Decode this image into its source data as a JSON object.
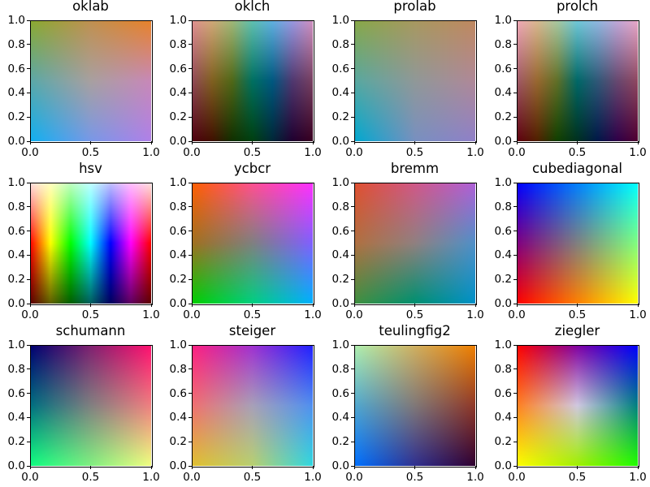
{
  "chart_data": [
    {
      "type": "heatmap",
      "title": "oklab",
      "xlim": [
        0,
        1
      ],
      "ylim": [
        0,
        1
      ],
      "xticks": [
        "0.0",
        "0.5",
        "1.0"
      ],
      "yticks": [
        "0.0",
        "0.2",
        "0.4",
        "0.6",
        "0.8",
        "1.0"
      ],
      "color_grid": [
        [
          "#8aaa30",
          "#c09050",
          "#e8822a"
        ],
        [
          "#5aa8a8",
          "#a8a0a0",
          "#c888b8"
        ],
        [
          "#10b0f0",
          "#7898e8",
          "#b080e8"
        ]
      ]
    },
    {
      "type": "heatmap",
      "title": "oklch",
      "xlim": [
        0,
        1
      ],
      "ylim": [
        0,
        1
      ],
      "xticks": [
        "0.0",
        "0.5",
        "1.0"
      ],
      "yticks": [
        "0.0",
        "0.2",
        "0.4",
        "0.6",
        "0.8",
        "1.0"
      ],
      "color_grid": [
        [
          "#e09090",
          "#d0a878",
          "#a0b878",
          "#60c0b0",
          "#60b0e0",
          "#9898e0",
          "#d090c0"
        ],
        [
          "#904858",
          "#806020",
          "#506818",
          "#007060",
          "#005880",
          "#503870",
          "#784060"
        ],
        [
          "#500010",
          "#401000",
          "#103000",
          "#004010",
          "#002838",
          "#200030",
          "#380020"
        ]
      ]
    },
    {
      "type": "heatmap",
      "title": "prolab",
      "xlim": [
        0,
        1
      ],
      "ylim": [
        0,
        1
      ],
      "xticks": [
        "0.0",
        "0.5",
        "1.0"
      ],
      "yticks": [
        "0.0",
        "0.2",
        "0.4",
        "0.6",
        "0.8",
        "1.0"
      ],
      "color_grid": [
        [
          "#88a848",
          "#a89860",
          "#c08860"
        ],
        [
          "#58a8a0",
          "#909898",
          "#b08898"
        ],
        [
          "#00a8d0",
          "#7890c0",
          "#9080c8"
        ]
      ]
    },
    {
      "type": "heatmap",
      "title": "prolch",
      "xlim": [
        0,
        1
      ],
      "ylim": [
        0,
        1
      ],
      "xticks": [
        "0.0",
        "0.5",
        "1.0"
      ],
      "yticks": [
        "0.0",
        "0.2",
        "0.4",
        "0.6",
        "0.8",
        "1.0"
      ],
      "color_grid": [
        [
          "#f0a8b8",
          "#d8b890",
          "#a8c8a0",
          "#70c8d8",
          "#90b8e0",
          "#c0a8d8",
          "#e8a8c8"
        ],
        [
          "#a05868",
          "#986830",
          "#607028",
          "#006868",
          "#305878",
          "#684870",
          "#904860"
        ],
        [
          "#600010",
          "#502000",
          "#104000",
          "#003020",
          "#001848",
          "#300048",
          "#500030"
        ]
      ]
    },
    {
      "type": "heatmap",
      "title": "hsv",
      "xlim": [
        0,
        1
      ],
      "ylim": [
        0,
        1
      ],
      "xticks": [
        "0.0",
        "0.5",
        "1.0"
      ],
      "yticks": [
        "0.0",
        "0.2",
        "0.4",
        "0.6",
        "0.8",
        "1.0"
      ],
      "color_grid": [
        [
          "#ffe0e0",
          "#ffffc0",
          "#c0ffc0",
          "#c0ffff",
          "#c0c0ff",
          "#ffc0ff",
          "#ffe0e0"
        ],
        [
          "#ff0000",
          "#ffff00",
          "#00ff00",
          "#00ffff",
          "#0000ff",
          "#ff00ff",
          "#ff0000"
        ],
        [
          "#600000",
          "#606000",
          "#006000",
          "#006060",
          "#000060",
          "#600060",
          "#600000"
        ]
      ]
    },
    {
      "type": "heatmap",
      "title": "ycbcr",
      "xlim": [
        0,
        1
      ],
      "ylim": [
        0,
        1
      ],
      "xticks": [
        "0.0",
        "0.5",
        "1.0"
      ],
      "yticks": [
        "0.0",
        "0.2",
        "0.4",
        "0.6",
        "0.8",
        "1.0"
      ],
      "color_grid": [
        [
          "#ff6000",
          "#ff5090",
          "#ff30ff"
        ],
        [
          "#a07020",
          "#808080",
          "#8060ff"
        ],
        [
          "#00d000",
          "#00d080",
          "#00b0ff"
        ]
      ]
    },
    {
      "type": "heatmap",
      "title": "bremm",
      "xlim": [
        0,
        1
      ],
      "ylim": [
        0,
        1
      ],
      "xticks": [
        "0.0",
        "0.5",
        "1.0"
      ],
      "yticks": [
        "0.0",
        "0.2",
        "0.4",
        "0.6",
        "0.8",
        "1.0"
      ],
      "color_grid": [
        [
          "#e05030",
          "#d05888",
          "#b060d8"
        ],
        [
          "#b07040",
          "#908080",
          "#5090c8"
        ],
        [
          "#409040",
          "#009070",
          "#0090c8"
        ]
      ]
    },
    {
      "type": "heatmap",
      "title": "cubediagonal",
      "xlim": [
        0,
        1
      ],
      "ylim": [
        0,
        1
      ],
      "xticks": [
        "0.0",
        "0.5",
        "1.0"
      ],
      "yticks": [
        "0.0",
        "0.2",
        "0.4",
        "0.6",
        "0.8",
        "1.0"
      ],
      "color_grid": [
        [
          "#0000ff",
          "#0080ff",
          "#00ffff"
        ],
        [
          "#800080",
          "#808080",
          "#80ff80"
        ],
        [
          "#ff0000",
          "#ff8000",
          "#ffff00"
        ]
      ]
    },
    {
      "type": "heatmap",
      "title": "schumann",
      "xlim": [
        0,
        1
      ],
      "ylim": [
        0,
        1
      ],
      "xticks": [
        "0.0",
        "0.5",
        "1.0"
      ],
      "yticks": [
        "0.0",
        "0.2",
        "0.4",
        "0.6",
        "0.8",
        "1.0"
      ],
      "color_grid": [
        [
          "#000070",
          "#802070",
          "#ff1070"
        ],
        [
          "#007080",
          "#808080",
          "#f08080"
        ],
        [
          "#10ff80",
          "#80f080",
          "#f0ff80"
        ]
      ]
    },
    {
      "type": "heatmap",
      "title": "steiger",
      "xlim": [
        0,
        1
      ],
      "ylim": [
        0,
        1
      ],
      "xticks": [
        "0.0",
        "0.5",
        "1.0"
      ],
      "yticks": [
        "0.0",
        "0.2",
        "0.4",
        "0.6",
        "0.8",
        "1.0"
      ],
      "color_grid": [
        [
          "#ff2080",
          "#a030d0",
          "#2020ff"
        ],
        [
          "#f07070",
          "#a8a0b8",
          "#5090f0"
        ],
        [
          "#e0c030",
          "#b8d070",
          "#30d8e0"
        ]
      ]
    },
    {
      "type": "heatmap",
      "title": "teulingfig2",
      "xlim": [
        0,
        1
      ],
      "ylim": [
        0,
        1
      ],
      "xticks": [
        "0.0",
        "0.5",
        "1.0"
      ],
      "yticks": [
        "0.0",
        "0.2",
        "0.4",
        "0.6",
        "0.8",
        "1.0"
      ],
      "color_grid": [
        [
          "#b0f0b0",
          "#d0b060",
          "#f08000"
        ],
        [
          "#50a8d0",
          "#807878",
          "#903828"
        ],
        [
          "#0070ff",
          "#303090",
          "#300030"
        ]
      ]
    },
    {
      "type": "heatmap",
      "title": "ziegler",
      "xlim": [
        0,
        1
      ],
      "ylim": [
        0,
        1
      ],
      "xticks": [
        "0.0",
        "0.5",
        "1.0"
      ],
      "yticks": [
        "0.0",
        "0.2",
        "0.4",
        "0.6",
        "0.8",
        "1.0"
      ],
      "color_grid": [
        [
          "#ff0000",
          "#8000a0",
          "#0000ff"
        ],
        [
          "#ff8020",
          "#d0c8e0",
          "#008080"
        ],
        [
          "#ffff00",
          "#a0f000",
          "#20ff00"
        ]
      ]
    }
  ]
}
